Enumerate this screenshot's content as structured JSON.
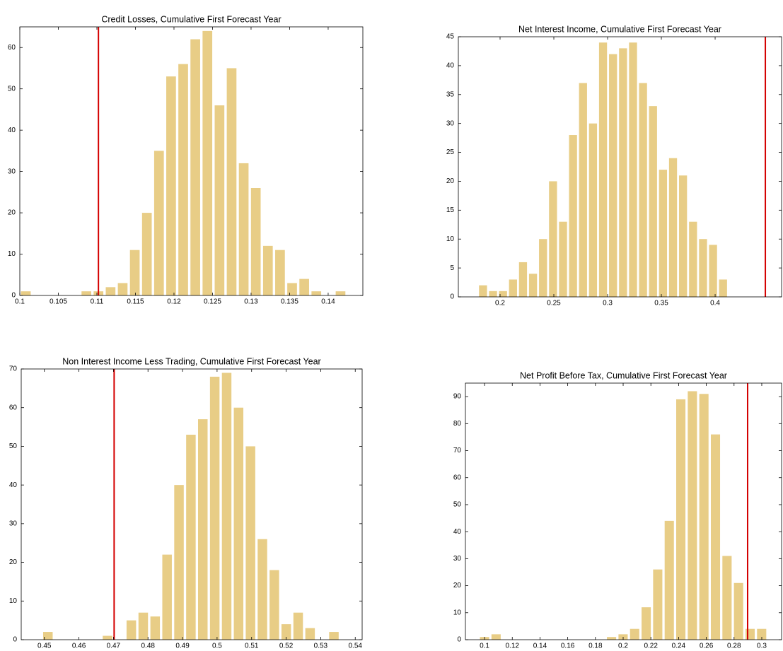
{
  "chart_data": [
    {
      "type": "histogram",
      "title": "Credit Losses, Cumulative First Forecast Year",
      "bins": [
        0.1,
        0.10157,
        0.10314,
        0.10471,
        0.10628,
        0.10785,
        0.10942,
        0.11099,
        0.11256,
        0.11413,
        0.1157,
        0.11727,
        0.11884,
        0.12041,
        0.12198,
        0.12355,
        0.12512,
        0.12669,
        0.12826,
        0.12983,
        0.1314,
        0.13297,
        0.13454,
        0.13611,
        0.13768,
        0.13925,
        0.14082,
        0.14239
      ],
      "values": [
        1,
        0,
        0,
        0,
        0,
        1,
        1,
        2,
        3,
        11,
        20,
        35,
        53,
        56,
        62,
        64,
        46,
        55,
        32,
        26,
        12,
        11,
        3,
        4,
        1,
        0,
        1
      ],
      "color": "#e8cd86",
      "vline": 0.1102,
      "vline_color": "#d40000",
      "xlim": [
        0.1,
        0.1445
      ],
      "xticks": [
        0.1,
        0.105,
        0.11,
        0.115,
        0.12,
        0.125,
        0.13,
        0.135,
        0.14
      ],
      "ylim": [
        0,
        65
      ],
      "yticks": [
        0,
        10,
        20,
        30,
        40,
        50,
        60
      ]
    },
    {
      "type": "histogram",
      "title": "Net Interest Income, Cumulative First Forecast Year",
      "bins": [
        0.1795,
        0.1888,
        0.1981,
        0.2074,
        0.2167,
        0.226,
        0.2353,
        0.2446,
        0.2539,
        0.2632,
        0.2725,
        0.2818,
        0.2911,
        0.3004,
        0.3097,
        0.319,
        0.3283,
        0.3376,
        0.3469,
        0.3562,
        0.3655,
        0.3748,
        0.3841,
        0.3934,
        0.4027,
        0.412
      ],
      "values": [
        2,
        1,
        1,
        3,
        6,
        4,
        10,
        20,
        13,
        28,
        37,
        30,
        44,
        42,
        43,
        44,
        37,
        33,
        22,
        24,
        21,
        13,
        10,
        9,
        3
      ],
      "color": "#e8cd86",
      "vline": 0.4467,
      "vline_color": "#d40000",
      "xlim": [
        0.1612,
        0.4618
      ],
      "xticks": [
        0.2,
        0.25,
        0.3,
        0.35,
        0.4
      ],
      "ylim": [
        0,
        45
      ],
      "yticks": [
        0,
        5,
        10,
        15,
        20,
        25,
        30,
        35,
        40,
        45
      ]
    },
    {
      "type": "histogram",
      "title": "Non Interest Income Less Trading, Cumulative First Forecast Year",
      "bins": [
        0.4493,
        0.45275,
        0.4562,
        0.45965,
        0.4631,
        0.46655,
        0.47,
        0.47345,
        0.4769,
        0.48035,
        0.4838,
        0.48725,
        0.4907,
        0.49415,
        0.4976,
        0.50105,
        0.5045,
        0.50795,
        0.5114,
        0.51485,
        0.5183,
        0.52175,
        0.5252,
        0.52865,
        0.5321,
        0.53555
      ],
      "values": [
        2,
        0,
        0,
        0,
        0,
        1,
        0,
        5,
        7,
        6,
        22,
        40,
        53,
        57,
        68,
        69,
        60,
        50,
        26,
        18,
        4,
        7,
        3,
        0,
        2
      ],
      "color": "#e8cd86",
      "vline": 0.4702,
      "vline_color": "#d40000",
      "xlim": [
        0.4433,
        0.542
      ],
      "xticks": [
        0.45,
        0.46,
        0.47,
        0.48,
        0.49,
        0.5,
        0.51,
        0.52,
        0.53,
        0.54
      ],
      "ylim": [
        0,
        70
      ],
      "yticks": [
        0,
        10,
        20,
        30,
        40,
        50,
        60,
        70
      ]
    },
    {
      "type": "histogram",
      "title": "Net Profit Before Tax, Cumulative First Forecast Year",
      "bins": [
        0.09583,
        0.10416,
        0.11249,
        0.12082,
        0.12915,
        0.13748,
        0.14581,
        0.15414,
        0.16247,
        0.1708,
        0.17913,
        0.18746,
        0.19579,
        0.20412,
        0.21245,
        0.22078,
        0.22911,
        0.23744,
        0.24577,
        0.2541,
        0.26243,
        0.27076,
        0.27909,
        0.28742,
        0.29575,
        0.30408
      ],
      "values": [
        1,
        2,
        0,
        0,
        0,
        0,
        0,
        0,
        0,
        0,
        0,
        1,
        2,
        4,
        12,
        26,
        44,
        89,
        92,
        91,
        76,
        31,
        21,
        4,
        4
      ],
      "color": "#e8cd86",
      "vline": 0.2898,
      "vline_color": "#d40000",
      "xlim": [
        0.0862,
        0.3143
      ],
      "xticks": [
        0.1,
        0.12,
        0.14,
        0.16,
        0.18,
        0.2,
        0.22,
        0.24,
        0.26,
        0.28,
        0.3
      ],
      "ylim": [
        0,
        95
      ],
      "yticks": [
        0,
        10,
        20,
        30,
        40,
        50,
        60,
        70,
        80,
        90
      ]
    }
  ]
}
